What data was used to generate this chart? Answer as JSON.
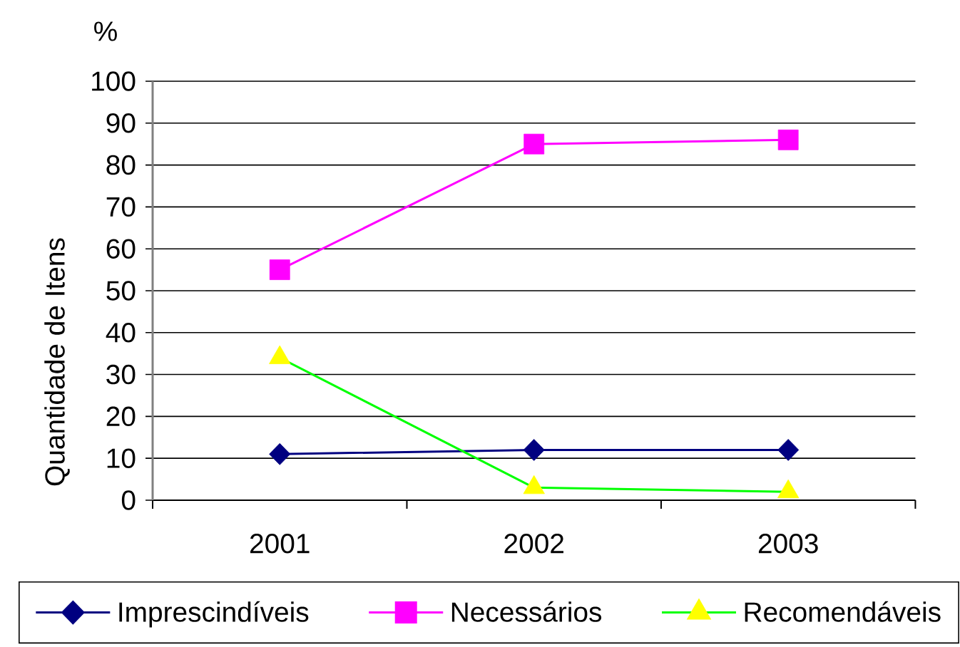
{
  "chart_data": {
    "type": "line",
    "ylabel": "Quantidade de Itens",
    "annotations": [
      "%"
    ],
    "categories": [
      "2001",
      "2002",
      "2003"
    ],
    "series": [
      {
        "name": "Imprescindíveis",
        "color": "#000080",
        "marker": "diamond",
        "values": [
          11,
          12,
          12
        ]
      },
      {
        "name": "Necessários",
        "color": "#ff00ff",
        "marker": "square",
        "values": [
          55,
          85,
          86
        ]
      },
      {
        "name": "Recomendáveis",
        "color": "#00ff00",
        "colors": [
          "#ffff00",
          "#ffff00",
          "#ffff00"
        ],
        "marker": "triangle",
        "values": [
          34,
          3,
          2
        ]
      }
    ],
    "ylim": [
      0,
      100
    ],
    "yticks": [
      0,
      10,
      20,
      30,
      40,
      50,
      60,
      70,
      80,
      90,
      100
    ],
    "grid": "y",
    "legend": "bottom",
    "line_style": "solid"
  }
}
